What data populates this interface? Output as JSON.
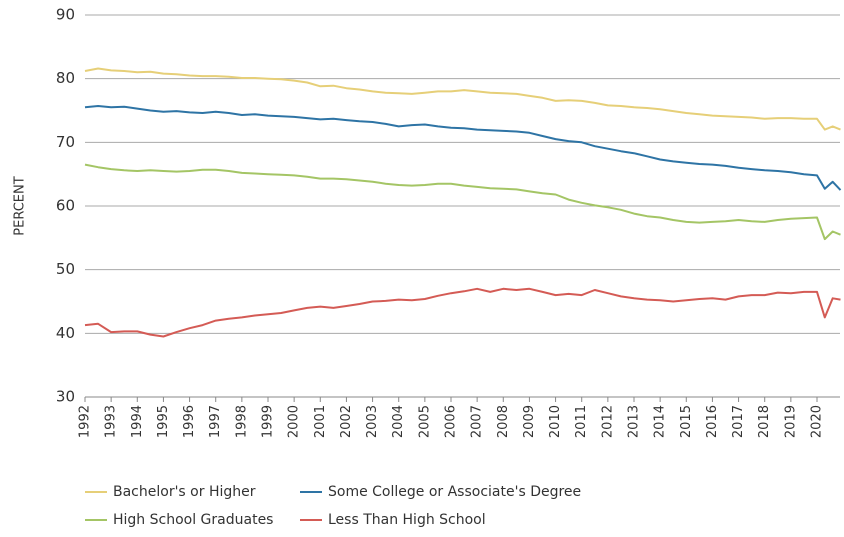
{
  "chart_data": {
    "type": "line",
    "ylabel": "PERCENT",
    "x": [
      1992,
      1992.5,
      1993,
      1993.5,
      1994,
      1994.5,
      1995,
      1995.5,
      1996,
      1996.5,
      1997,
      1997.5,
      1998,
      1998.5,
      1999,
      1999.5,
      2000,
      2000.5,
      2001,
      2001.5,
      2002,
      2002.5,
      2003,
      2003.5,
      2004,
      2004.5,
      2005,
      2005.5,
      2006,
      2006.5,
      2007,
      2007.5,
      2008,
      2008.5,
      2009,
      2009.5,
      2010,
      2010.5,
      2011,
      2011.5,
      2012,
      2012.5,
      2013,
      2013.5,
      2014,
      2014.5,
      2015,
      2015.5,
      2016,
      2016.5,
      2017,
      2017.5,
      2018,
      2018.5,
      2019,
      2019.5,
      2020,
      2020.3,
      2020.6,
      2020.9
    ],
    "series": [
      {
        "name": "Bachelor's or Higher",
        "color": "#e6cf78",
        "values": [
          81.2,
          81.6,
          81.3,
          81.2,
          81.0,
          81.1,
          80.8,
          80.7,
          80.5,
          80.4,
          80.4,
          80.3,
          80.1,
          80.1,
          80.0,
          79.9,
          79.7,
          79.4,
          78.8,
          78.9,
          78.5,
          78.3,
          78.0,
          77.8,
          77.7,
          77.6,
          77.8,
          78.0,
          78.0,
          78.2,
          78.0,
          77.8,
          77.7,
          77.6,
          77.3,
          77.0,
          76.5,
          76.6,
          76.5,
          76.2,
          75.8,
          75.7,
          75.5,
          75.4,
          75.2,
          74.9,
          74.6,
          74.4,
          74.2,
          74.1,
          74.0,
          73.9,
          73.7,
          73.8,
          73.8,
          73.7,
          73.7,
          72.0,
          72.5,
          72.0
        ]
      },
      {
        "name": "Some College or Associate's Degree",
        "color": "#2e74a5",
        "values": [
          75.5,
          75.7,
          75.5,
          75.6,
          75.3,
          75.0,
          74.8,
          74.9,
          74.7,
          74.6,
          74.8,
          74.6,
          74.3,
          74.4,
          74.2,
          74.1,
          74.0,
          73.8,
          73.6,
          73.7,
          73.5,
          73.3,
          73.2,
          72.9,
          72.5,
          72.7,
          72.8,
          72.5,
          72.3,
          72.2,
          72.0,
          71.9,
          71.8,
          71.7,
          71.5,
          71.0,
          70.5,
          70.2,
          70.0,
          69.4,
          69.0,
          68.6,
          68.3,
          67.8,
          67.3,
          67.0,
          66.8,
          66.6,
          66.5,
          66.3,
          66.0,
          65.8,
          65.6,
          65.5,
          65.3,
          65.0,
          64.8,
          62.7,
          63.8,
          62.5
        ]
      },
      {
        "name": "High School Graduates",
        "color": "#a4c565",
        "values": [
          66.5,
          66.1,
          65.8,
          65.6,
          65.5,
          65.6,
          65.5,
          65.4,
          65.5,
          65.7,
          65.7,
          65.5,
          65.2,
          65.1,
          65.0,
          64.9,
          64.8,
          64.6,
          64.3,
          64.3,
          64.2,
          64.0,
          63.8,
          63.5,
          63.3,
          63.2,
          63.3,
          63.5,
          63.5,
          63.2,
          63.0,
          62.8,
          62.7,
          62.6,
          62.3,
          62.0,
          61.8,
          61.0,
          60.5,
          60.1,
          59.8,
          59.4,
          58.8,
          58.4,
          58.2,
          57.8,
          57.5,
          57.4,
          57.5,
          57.6,
          57.8,
          57.6,
          57.5,
          57.8,
          58.0,
          58.1,
          58.2,
          54.8,
          56.0,
          55.5
        ]
      },
      {
        "name": "Less Than High School",
        "color": "#d45b55",
        "values": [
          41.3,
          41.5,
          40.2,
          40.3,
          40.3,
          39.8,
          39.5,
          40.2,
          40.8,
          41.3,
          42.0,
          42.3,
          42.5,
          42.8,
          43.0,
          43.2,
          43.6,
          44.0,
          44.2,
          44.0,
          44.3,
          44.6,
          45.0,
          45.1,
          45.3,
          45.2,
          45.4,
          45.9,
          46.3,
          46.6,
          47.0,
          46.5,
          47.0,
          46.8,
          47.0,
          46.5,
          46.0,
          46.2,
          46.0,
          46.8,
          46.3,
          45.8,
          45.5,
          45.3,
          45.2,
          45.0,
          45.2,
          45.4,
          45.5,
          45.3,
          45.8,
          46.0,
          46.0,
          46.4,
          46.3,
          46.5,
          46.5,
          42.5,
          45.5,
          45.3
        ]
      }
    ],
    "xlim": [
      1992,
      2020.88
    ],
    "xticks": [
      1992,
      1993,
      1994,
      1995,
      1996,
      1997,
      1998,
      1999,
      2000,
      2001,
      2002,
      2003,
      2004,
      2005,
      2006,
      2007,
      2008,
      2009,
      2010,
      2011,
      2012,
      2013,
      2014,
      2015,
      2016,
      2017,
      2018,
      2019,
      2020
    ],
    "ylim": [
      30,
      90
    ],
    "yticks": [
      30,
      40,
      50,
      60,
      70,
      80,
      90
    ],
    "grid": true,
    "legend": "bottom"
  }
}
